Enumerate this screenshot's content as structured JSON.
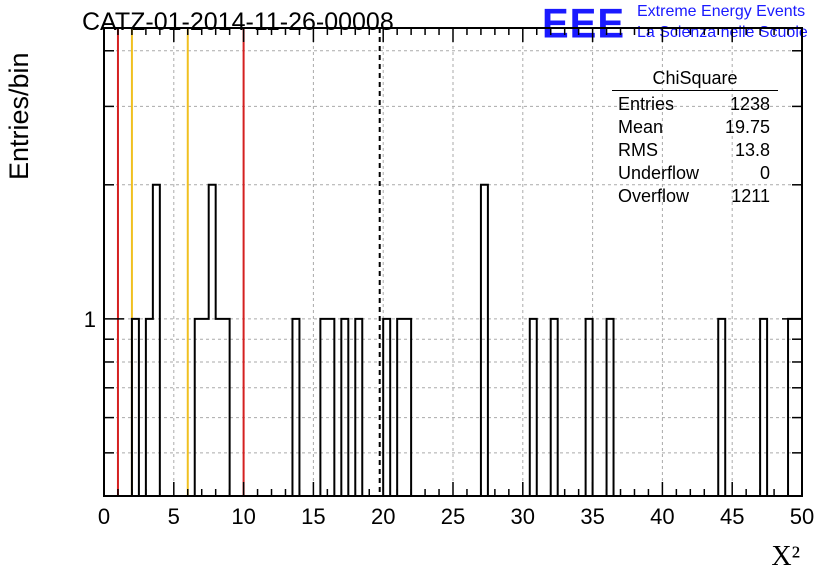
{
  "title": "CATZ-01-2014-11-26-00008",
  "logo": {
    "mark": "EEE",
    "line1": "Extreme Energy Events",
    "line2": "La Scienza nelle Scuole",
    "color": "#1a1aff"
  },
  "stats": {
    "title": "ChiSquare",
    "rows": [
      {
        "label": "Entries",
        "value": "1238"
      },
      {
        "label": "Mean",
        "value": "19.75"
      },
      {
        "label": "RMS",
        "value": "13.8"
      },
      {
        "label": "Underflow",
        "value": "0"
      },
      {
        "label": "Overflow",
        "value": "1211"
      }
    ]
  },
  "chart_data": {
    "type": "bar",
    "histogram": "step",
    "title": "CATZ-01-2014-11-26-00008",
    "xlabel": "X²",
    "ylabel": "Entries/bin",
    "xlim": [
      0,
      50
    ],
    "ylog": true,
    "ylim": [
      0.4,
      4.5
    ],
    "grid": true,
    "bin_width": 0.5,
    "x_ticks": [
      "0",
      "5",
      "10",
      "15",
      "20",
      "25",
      "30",
      "35",
      "40",
      "45",
      "50"
    ],
    "y_tick_labels": [
      {
        "value": 1,
        "label": "1"
      }
    ],
    "bins": [
      {
        "x": 2.0,
        "value": 1
      },
      {
        "x": 3.0,
        "value": 1
      },
      {
        "x": 3.5,
        "value": 2
      },
      {
        "x": 6.5,
        "value": 1
      },
      {
        "x": 7.0,
        "value": 1
      },
      {
        "x": 7.5,
        "value": 2
      },
      {
        "x": 8.0,
        "value": 1
      },
      {
        "x": 8.5,
        "value": 1
      },
      {
        "x": 13.5,
        "value": 1
      },
      {
        "x": 15.5,
        "value": 1
      },
      {
        "x": 16.0,
        "value": 1
      },
      {
        "x": 17.0,
        "value": 1
      },
      {
        "x": 18.0,
        "value": 1
      },
      {
        "x": 20.0,
        "value": 1
      },
      {
        "x": 21.0,
        "value": 1
      },
      {
        "x": 21.5,
        "value": 1
      },
      {
        "x": 27.0,
        "value": 2
      },
      {
        "x": 30.5,
        "value": 1
      },
      {
        "x": 32.0,
        "value": 1
      },
      {
        "x": 34.5,
        "value": 1
      },
      {
        "x": 36.0,
        "value": 1
      },
      {
        "x": 44.0,
        "value": 1
      },
      {
        "x": 47.0,
        "value": 1
      },
      {
        "x": 49.0,
        "value": 1
      },
      {
        "x": 49.5,
        "value": 1
      }
    ],
    "vlines": [
      {
        "x": 1.0,
        "color": "#d42020",
        "style": "solid"
      },
      {
        "x": 2.0,
        "color": "#f0c020",
        "style": "solid"
      },
      {
        "x": 6.0,
        "color": "#f0c020",
        "style": "solid"
      },
      {
        "x": 10.0,
        "color": "#d42020",
        "style": "solid"
      },
      {
        "x": 19.75,
        "color": "#000000",
        "style": "dashed"
      }
    ]
  }
}
